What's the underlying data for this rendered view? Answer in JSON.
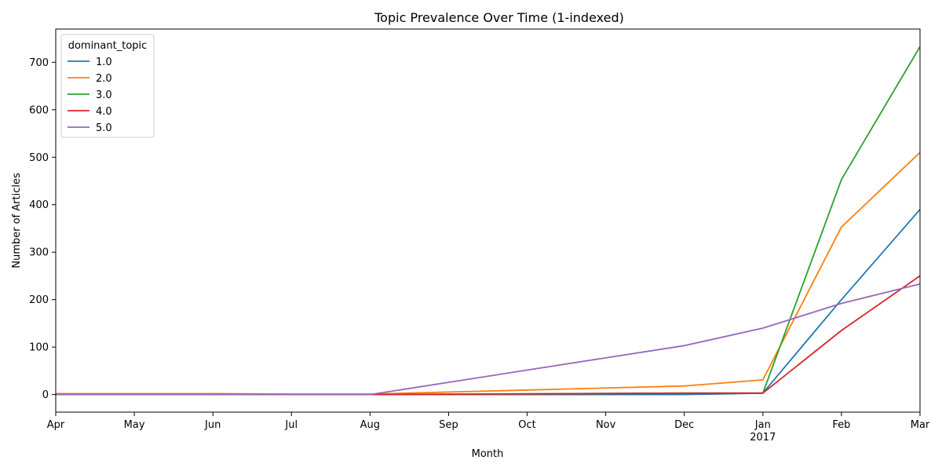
{
  "chart_data": {
    "type": "line",
    "title": "Topic Prevalence Over Time (1-indexed)",
    "xlabel": "Month",
    "ylabel": "Number of Articles",
    "categories": [
      "Apr",
      "May",
      "Jun",
      "Jul",
      "Aug",
      "Sep",
      "Oct",
      "Nov",
      "Dec",
      "Jan",
      "Feb",
      "Mar"
    ],
    "year_label": "2017",
    "year_label_under": "Jan",
    "ylim": [
      -37,
      770
    ],
    "yticks": [
      0,
      100,
      200,
      300,
      400,
      500,
      600,
      700
    ],
    "grid": false,
    "legend": {
      "title": "dominant_topic",
      "placement": "top-left"
    },
    "series": [
      {
        "name": "1.0",
        "color": "#1f77b4",
        "values": [
          0,
          0,
          0,
          0,
          0,
          null,
          null,
          null,
          0,
          3,
          200,
          390
        ]
      },
      {
        "name": "2.0",
        "color": "#ff7f0e",
        "values": [
          2,
          2,
          2,
          1,
          1,
          null,
          null,
          null,
          18,
          31,
          353,
          510
        ]
      },
      {
        "name": "3.0",
        "color": "#2ca02c",
        "values": [
          0,
          0,
          0,
          0,
          0,
          null,
          null,
          null,
          3,
          3,
          453,
          733
        ]
      },
      {
        "name": "4.0",
        "color": "#d62728",
        "values": [
          0,
          0,
          0,
          0,
          0,
          null,
          null,
          null,
          3,
          3,
          135,
          250
        ]
      },
      {
        "name": "5.0",
        "color": "#9467bd",
        "values": [
          0,
          0,
          0,
          0,
          0,
          null,
          null,
          null,
          103,
          140,
          192,
          233
        ]
      }
    ]
  }
}
